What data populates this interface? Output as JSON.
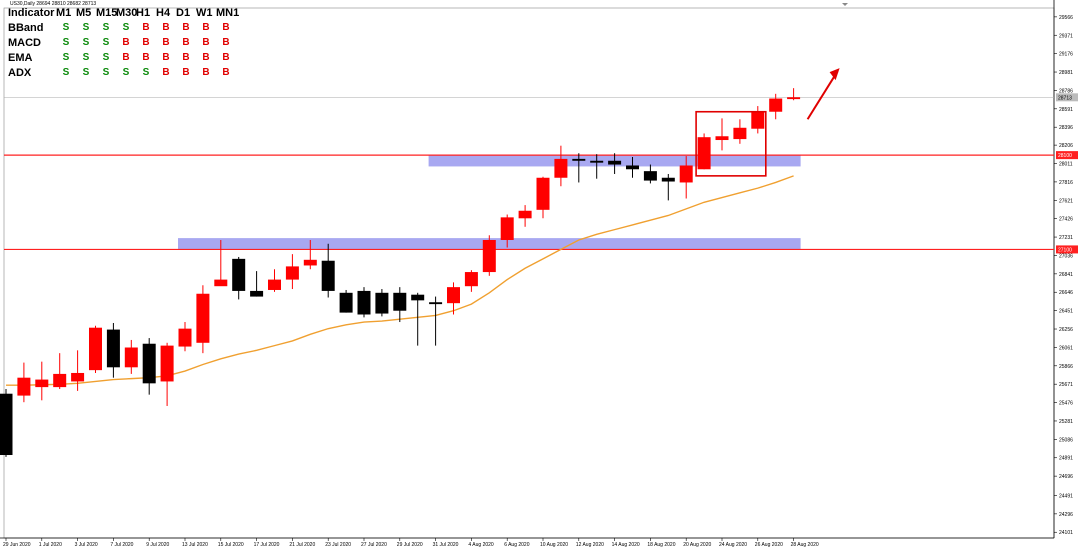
{
  "window": {
    "symbol_line": "US30,Daily  28694 28810 28682 28713"
  },
  "indicator_table": {
    "header": [
      "Indicator",
      "M1",
      "M5",
      "M15",
      "M30",
      "H1",
      "H4",
      "D1",
      "W1",
      "MN1"
    ],
    "rows": [
      {
        "name": "BBand",
        "signals": [
          "S",
          "S",
          "S",
          "S",
          "B",
          "B",
          "B",
          "B",
          "B"
        ]
      },
      {
        "name": "MACD",
        "signals": [
          "S",
          "S",
          "S",
          "B",
          "B",
          "B",
          "B",
          "B",
          "B"
        ]
      },
      {
        "name": "EMA",
        "signals": [
          "S",
          "S",
          "S",
          "B",
          "B",
          "B",
          "B",
          "B",
          "B"
        ]
      },
      {
        "name": "ADX",
        "signals": [
          "S",
          "S",
          "S",
          "S",
          "S",
          "B",
          "B",
          "B",
          "B"
        ]
      }
    ],
    "colors": {
      "S": "#0a8a0a",
      "B": "#e00000"
    }
  },
  "chart_data": {
    "type": "candlestick",
    "title": "US30,Daily",
    "y_ticks": [
      24101,
      24296,
      24491,
      24696,
      24891,
      25086,
      25281,
      25476,
      25671,
      25866,
      26061,
      26256,
      26451,
      26646,
      26841,
      27036,
      27231,
      27426,
      27621,
      27816,
      28011,
      28206,
      28396,
      28591,
      28786,
      28981,
      29176,
      29371,
      29566
    ],
    "ylim": [
      24040,
      29660
    ],
    "x_labels": [
      "29 Jun 2020",
      "1 Jul 2020",
      "3 Jul 2020",
      "7 Jul 2020",
      "9 Jul 2020",
      "13 Jul 2020",
      "15 Jul 2020",
      "17 Jul 2020",
      "21 Jul 2020",
      "23 Jul 2020",
      "27 Jul 2020",
      "29 Jul 2020",
      "31 Jul 2020",
      "4 Aug 2020",
      "6 Aug 2020",
      "10 Aug 2020",
      "12 Aug 2020",
      "14 Aug 2020",
      "18 Aug 2020",
      "20 Aug 2020",
      "24 Aug 2020",
      "26 Aug 2020",
      "28 Aug 2020"
    ],
    "candles": [
      {
        "o": 25570,
        "h": 25620,
        "l": 24900,
        "c": 24920
      },
      {
        "o": 25550,
        "h": 25900,
        "l": 25480,
        "c": 25740
      },
      {
        "o": 25640,
        "h": 25910,
        "l": 25500,
        "c": 25720
      },
      {
        "o": 25640,
        "h": 26000,
        "l": 25620,
        "c": 25780
      },
      {
        "o": 25700,
        "h": 26030,
        "l": 25600,
        "c": 25790
      },
      {
        "o": 25820,
        "h": 26290,
        "l": 25790,
        "c": 26270
      },
      {
        "o": 26250,
        "h": 26320,
        "l": 25740,
        "c": 25850
      },
      {
        "o": 25850,
        "h": 26140,
        "l": 25780,
        "c": 26060
      },
      {
        "o": 26100,
        "h": 26160,
        "l": 25560,
        "c": 25680
      },
      {
        "o": 25700,
        "h": 26110,
        "l": 25440,
        "c": 26080
      },
      {
        "o": 26070,
        "h": 26330,
        "l": 26020,
        "c": 26260
      },
      {
        "o": 26110,
        "h": 26720,
        "l": 26000,
        "c": 26630
      },
      {
        "o": 26710,
        "h": 27200,
        "l": 26720,
        "c": 26780
      },
      {
        "o": 27000,
        "h": 27020,
        "l": 26570,
        "c": 26660
      },
      {
        "o": 26660,
        "h": 26870,
        "l": 26600,
        "c": 26600
      },
      {
        "o": 26670,
        "h": 26890,
        "l": 26650,
        "c": 26780
      },
      {
        "o": 26780,
        "h": 27050,
        "l": 26680,
        "c": 26920
      },
      {
        "o": 26930,
        "h": 27200,
        "l": 26890,
        "c": 26990
      },
      {
        "o": 26980,
        "h": 27160,
        "l": 26590,
        "c": 26660
      },
      {
        "o": 26640,
        "h": 26670,
        "l": 26430,
        "c": 26430
      },
      {
        "o": 26660,
        "h": 26700,
        "l": 26380,
        "c": 26410
      },
      {
        "o": 26640,
        "h": 26680,
        "l": 26390,
        "c": 26420
      },
      {
        "o": 26640,
        "h": 26700,
        "l": 26330,
        "c": 26450
      },
      {
        "o": 26620,
        "h": 26640,
        "l": 26080,
        "c": 26560
      },
      {
        "o": 26540,
        "h": 26600,
        "l": 26080,
        "c": 26520
      },
      {
        "o": 26530,
        "h": 26750,
        "l": 26410,
        "c": 26700
      },
      {
        "o": 26710,
        "h": 26880,
        "l": 26650,
        "c": 26860
      },
      {
        "o": 26860,
        "h": 27250,
        "l": 26820,
        "c": 27200
      },
      {
        "o": 27200,
        "h": 27470,
        "l": 27120,
        "c": 27440
      },
      {
        "o": 27430,
        "h": 27570,
        "l": 27340,
        "c": 27510
      },
      {
        "o": 27520,
        "h": 27870,
        "l": 27430,
        "c": 27860
      },
      {
        "o": 27860,
        "h": 28200,
        "l": 27770,
        "c": 28060
      },
      {
        "o": 28060,
        "h": 28120,
        "l": 27810,
        "c": 28040
      },
      {
        "o": 28040,
        "h": 28110,
        "l": 27850,
        "c": 28020
      },
      {
        "o": 28040,
        "h": 28120,
        "l": 27900,
        "c": 28000
      },
      {
        "o": 27990,
        "h": 28080,
        "l": 27860,
        "c": 27950
      },
      {
        "o": 27930,
        "h": 28000,
        "l": 27800,
        "c": 27830
      },
      {
        "o": 27860,
        "h": 27900,
        "l": 27620,
        "c": 27820
      },
      {
        "o": 27810,
        "h": 28090,
        "l": 27640,
        "c": 27990
      },
      {
        "o": 27950,
        "h": 28330,
        "l": 27950,
        "c": 28290
      },
      {
        "o": 28260,
        "h": 28490,
        "l": 28150,
        "c": 28300
      },
      {
        "o": 28270,
        "h": 28480,
        "l": 28220,
        "c": 28390
      },
      {
        "o": 28380,
        "h": 28620,
        "l": 28330,
        "c": 28560
      },
      {
        "o": 28560,
        "h": 28750,
        "l": 28480,
        "c": 28700
      },
      {
        "o": 28694,
        "h": 28810,
        "l": 28682,
        "c": 28713
      }
    ],
    "moving_average": [
      25660,
      25660,
      25665,
      25670,
      25680,
      25700,
      25720,
      25730,
      25740,
      25760,
      25810,
      25880,
      25940,
      25990,
      26030,
      26080,
      26130,
      26200,
      26260,
      26300,
      26330,
      26340,
      26360,
      26380,
      26400,
      26450,
      26520,
      26640,
      26780,
      26900,
      27000,
      27100,
      27200,
      27260,
      27310,
      27360,
      27410,
      27460,
      27530,
      27600,
      27650,
      27700,
      27750,
      27810,
      27880
    ],
    "price_levels": [
      {
        "value": 28100,
        "label": "28100",
        "color": "#ff2020"
      },
      {
        "value": 27100,
        "label": "27100",
        "color": "#ff2020"
      }
    ],
    "current_price": {
      "value": 28713,
      "label": "28713"
    },
    "zones": [
      {
        "from_index": 24,
        "to_index": 44,
        "low": 27980,
        "high": 28100
      },
      {
        "from_index": 10,
        "to_index": 44,
        "low": 27100,
        "high": 27220
      }
    ],
    "highlight_box": {
      "from_index": 39,
      "to_index": 42,
      "low": 27880,
      "high": 28560
    },
    "colors": {
      "bull": "#ff0000",
      "bear": "#000000",
      "ma": "#f0a030",
      "zone": "#9999ee",
      "level": "#ff2020",
      "box": "#e00000",
      "arrow": "#e00000"
    },
    "grid": false
  }
}
